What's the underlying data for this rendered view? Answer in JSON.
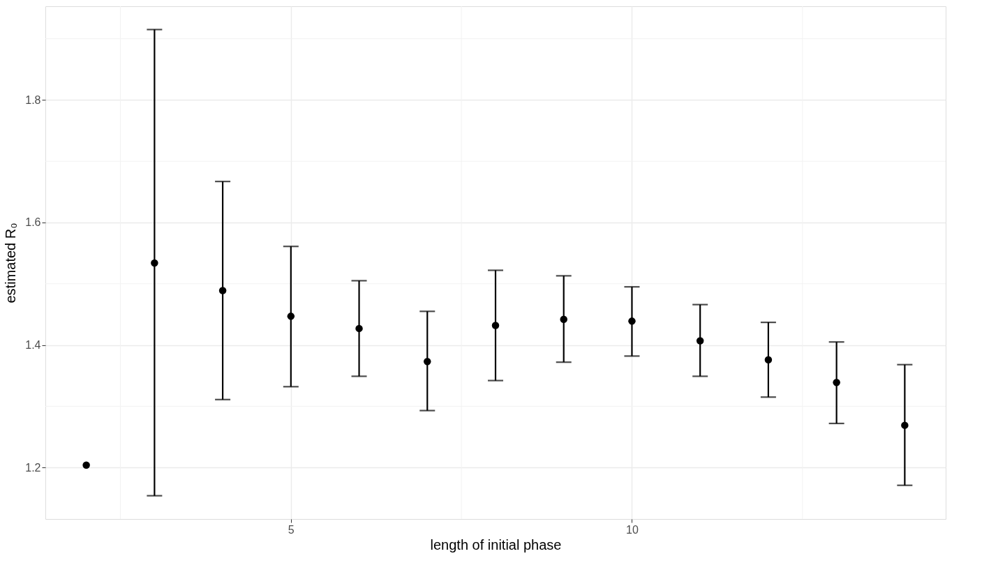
{
  "chart_data": {
    "type": "scatter",
    "xlabel": "length of initial phase",
    "ylabel": "estimated R₀",
    "x": [
      2,
      3,
      4,
      5,
      6,
      7,
      8,
      9,
      10,
      11,
      12,
      13,
      14
    ],
    "values": [
      1.204,
      1.534,
      1.489,
      1.447,
      1.427,
      1.373,
      1.432,
      1.442,
      1.439,
      1.407,
      1.376,
      1.339,
      1.269
    ],
    "errors": [
      null,
      [
        1.154,
        1.915
      ],
      [
        1.311,
        1.667
      ],
      [
        1.332,
        1.561
      ],
      [
        1.349,
        1.505
      ],
      [
        1.293,
        1.455
      ],
      [
        1.342,
        1.522
      ],
      [
        1.372,
        1.513
      ],
      [
        1.382,
        1.495
      ],
      [
        1.349,
        1.466
      ],
      [
        1.315,
        1.437
      ],
      [
        1.272,
        1.405
      ],
      [
        1.171,
        1.368
      ]
    ],
    "color": "#000000",
    "marker": "circle",
    "xlim": [
      1.4,
      14.6
    ],
    "ylim": [
      1.116,
      1.953
    ],
    "xticks": [
      5,
      10
    ],
    "yticks": [
      1.2,
      1.4,
      1.6,
      1.8
    ],
    "grid": true
  }
}
